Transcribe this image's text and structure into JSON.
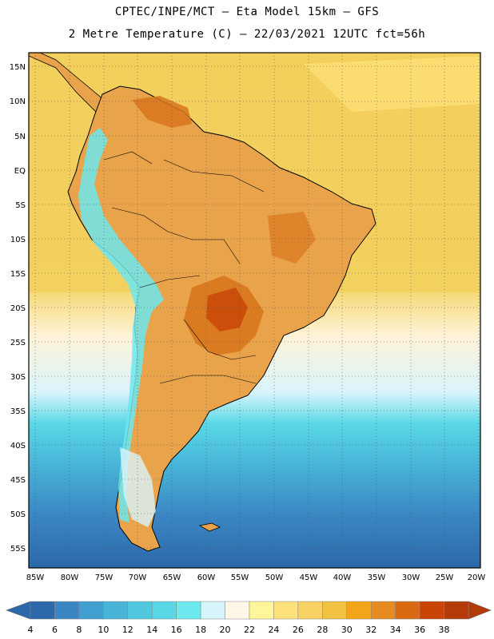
{
  "header": {
    "line1": "CPTEC/INPE/MCT –  Eta Model 15km – GFS",
    "line2": "2 Metre Temperature (C) – 22/03/2021 12UTC fct=56h"
  },
  "map": {
    "lat_labels": [
      "15N",
      "10N",
      "5N",
      "EQ",
      "5S",
      "10S",
      "15S",
      "20S",
      "25S",
      "30S",
      "35S",
      "40S",
      "45S",
      "50S",
      "55S"
    ],
    "lon_labels": [
      "85W",
      "80W",
      "75W",
      "70W",
      "65W",
      "60W",
      "55W",
      "50W",
      "45W",
      "40W",
      "35W",
      "30W",
      "25W",
      "20W"
    ],
    "gridlines": "dotted",
    "land_color": "#e9a34a",
    "ocean_warm_color": "#f2cf5c",
    "ocean_cold_color": "#2f6fb0"
  },
  "colorbar": {
    "ticks": [
      "4",
      "6",
      "8",
      "10",
      "12",
      "14",
      "16",
      "18",
      "20",
      "22",
      "24",
      "26",
      "28",
      "30",
      "32",
      "34",
      "36",
      "38"
    ],
    "colors": [
      "#2c68aa",
      "#3a86c2",
      "#41a0cf",
      "#48b5d8",
      "#50c8de",
      "#5ad8e6",
      "#6de8ee",
      "#d8f4fb",
      "#fff8e8",
      "#fff59a",
      "#fde27a",
      "#f8d163",
      "#f1c142",
      "#f3a51a",
      "#e88a22",
      "#da6a11",
      "#c84406",
      "#b43a0a"
    ],
    "low_arrow_color": "#2c68aa",
    "high_arrow_color": "#b43a0a"
  }
}
